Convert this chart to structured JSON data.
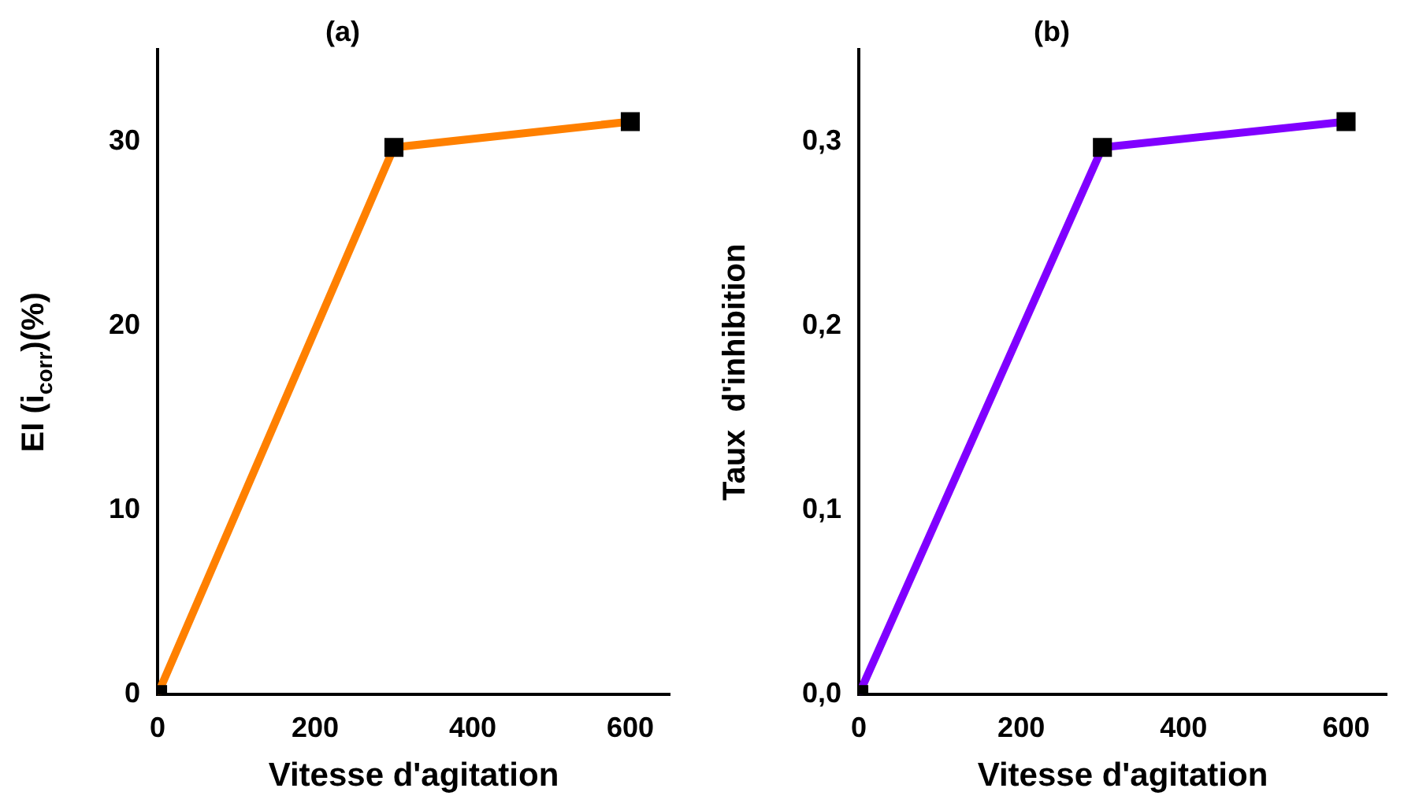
{
  "chart_data": [
    {
      "type": "line",
      "title": "(a)",
      "xlabel": "Vitesse d'agitation",
      "ylabel": "EI (i$_{corr}$)(%)",
      "x": [
        0,
        300,
        600
      ],
      "xlim": [
        0,
        650
      ],
      "xticks": [
        0,
        200,
        400,
        600
      ],
      "ylim": [
        0,
        35
      ],
      "yticks": [
        0,
        10,
        20,
        30
      ],
      "marker": "square",
      "line_style": "solid",
      "grid": false,
      "legend": false,
      "series": [
        {
          "color": "#ff8000",
          "values": [
            0,
            29.7,
            31.1
          ]
        }
      ]
    },
    {
      "type": "line",
      "title": "(b)",
      "xlabel": "Vitesse d'agitation",
      "ylabel": "Taux  d'inhibition",
      "x": [
        0,
        300,
        600
      ],
      "xlim": [
        0,
        650
      ],
      "xticks": [
        0,
        200,
        400,
        600
      ],
      "ylim": [
        0,
        0.35
      ],
      "yticks": [
        {
          "value": 0,
          "label": "0,0"
        },
        {
          "value": 0.1,
          "label": "0,1"
        },
        {
          "value": 0.2,
          "label": "0,2"
        },
        {
          "value": 0.3,
          "label": "0,3"
        }
      ],
      "marker": "square",
      "line_style": "solid",
      "grid": false,
      "legend": false,
      "series": [
        {
          "color": "#8000ff",
          "values": [
            0,
            0.297,
            0.311
          ]
        }
      ]
    }
  ]
}
